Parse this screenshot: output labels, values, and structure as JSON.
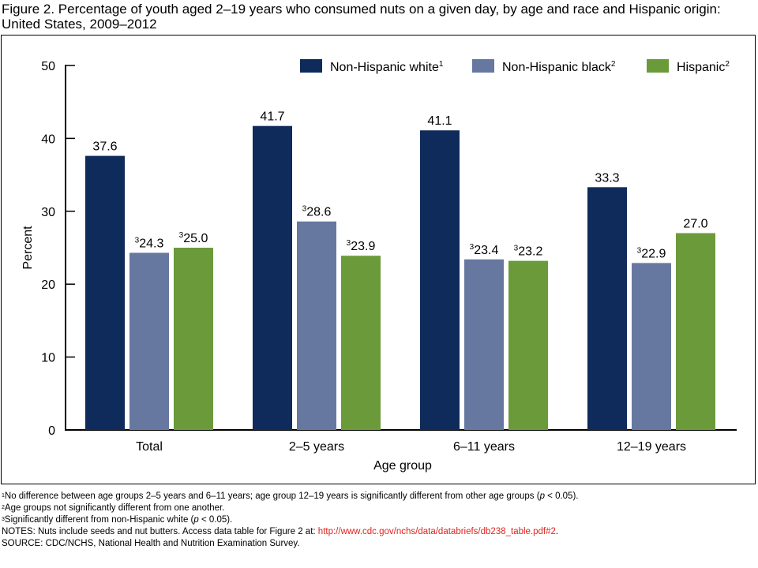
{
  "figure": {
    "title": "Figure 2. Percentage of youth aged 2–19 years who consumed nuts on a given day, by age and race and Hispanic origin: United States, 2009–2012"
  },
  "chart_data": {
    "type": "bar",
    "xlabel": "Age group",
    "ylabel": "Percent",
    "ylim": [
      0,
      50
    ],
    "yticks": [
      0,
      10,
      20,
      30,
      40,
      50
    ],
    "grid": false,
    "legend_position": "top-right",
    "categories": [
      "Total",
      "2–5 years",
      "6–11 years",
      "12–19 years"
    ],
    "series": [
      {
        "name": "Non-Hispanic white",
        "sup": "1",
        "color": "#0f2b5b",
        "values": [
          37.6,
          41.7,
          41.1,
          33.3
        ],
        "label_sups": [
          "",
          "",
          "",
          ""
        ]
      },
      {
        "name": "Non-Hispanic black",
        "sup": "2",
        "color": "#6677a0",
        "values": [
          24.3,
          28.6,
          23.4,
          22.9
        ],
        "label_sups": [
          "3",
          "3",
          "3",
          "3"
        ]
      },
      {
        "name": "Hispanic",
        "sup": "2",
        "color": "#6b9a3a",
        "values": [
          25.0,
          23.9,
          23.2,
          27.0
        ],
        "label_sups": [
          "3",
          "3",
          "3",
          ""
        ]
      }
    ]
  },
  "notes": {
    "note1_sup": "1",
    "note1_pre": "No difference between age groups 2–5 years and 6–11 years; age group 12–19 years is significantly different from other age groups (",
    "note1_p": "p",
    "note1_post": " < 0.05).",
    "note2_sup": "2",
    "note2": "Age groups not significantly different from one another.",
    "note3_sup": "3",
    "note3_pre": "Significantly different from non-Hispanic white (",
    "note3_p": "p",
    "note3_post": " < 0.05).",
    "notes_line": "NOTES: Nuts include seeds and nut butters. Access data table for Figure 2 at: ",
    "link_text": "http://www.cdc.gov/nchs/data/databriefs/db238_table.pdf#2",
    "link_suffix": ".",
    "source": "SOURCE: CDC/NCHS, National Health and Nutrition Examination Survey."
  }
}
